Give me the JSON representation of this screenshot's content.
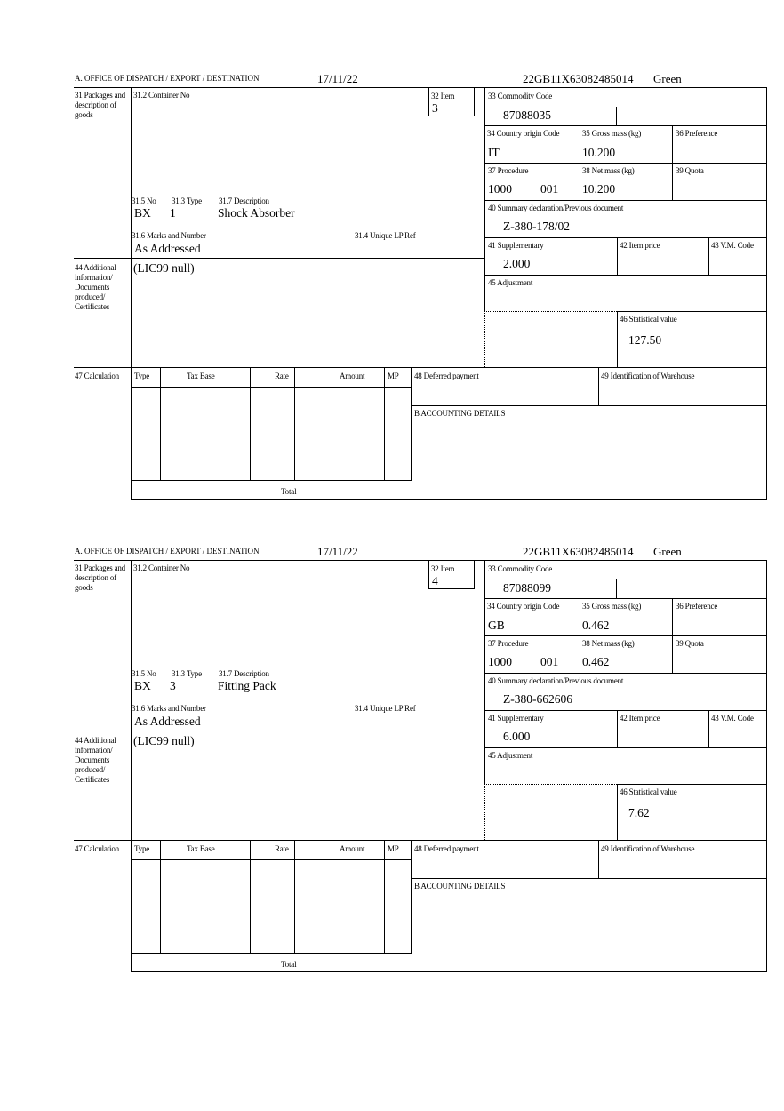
{
  "labels": {
    "office": "A.  OFFICE OF DISPATCH / EXPORT / DESTINATION",
    "box31": "31 Packages and description of goods",
    "box31_2": "31.2 Container No",
    "box32": "32 Item",
    "box33": "33 Commodity Code",
    "box34": "34 Country origin Code",
    "box35": "35 Gross mass (kg)",
    "box36": "36 Preference",
    "box37": "37 Procedure",
    "box38": "38 Net mass (kg)",
    "box39": "39 Quota",
    "box40": "40 Summary declaration/Previous document",
    "box41": "41 Supplementary",
    "box42": "42 Item price",
    "box43": "43 V.M. Code",
    "box45": "45 Adjustment",
    "box46": "46 Statistical value",
    "box31_5": "31.5 No",
    "box31_3": "31.3 Type",
    "box31_7": "31.7 Description",
    "box31_6": "31.6 Marks and Number",
    "box31_4": "31.4 Unique LP Ref",
    "box44": "44 Additional information/ Documents produced/ Certificates",
    "box47": "47 Calculation",
    "calc_type": "Type",
    "calc_tax_base": "Tax Base",
    "calc_rate": "Rate",
    "calc_amount": "Amount",
    "calc_mp": "MP",
    "calc_total": "Total",
    "box48": "48 Deferred payment",
    "box49": "49 Identification of Warehouse",
    "boxB": "B ACCOUNTING DETAILS"
  },
  "forms": [
    {
      "date": "17/11/22",
      "reference": "22GB11X63082485014",
      "route": "Green",
      "item": "3",
      "commodity_code": "87088035",
      "country_origin": "IT",
      "gross_mass": "10.200",
      "procedure": "1000",
      "procedure_additional": "001",
      "net_mass": "10.200",
      "previous_document": "Z-380-178/02",
      "package_kind": "BX",
      "package_count": "1",
      "description": "Shock Absorber",
      "marks": "As Addressed",
      "additional_info": "(LIC99 null)",
      "supplementary": "2.000",
      "statistical_value": "127.50"
    },
    {
      "date": "17/11/22",
      "reference": "22GB11X63082485014",
      "route": "Green",
      "item": "4",
      "commodity_code": "87088099",
      "country_origin": "GB",
      "gross_mass": "0.462",
      "procedure": "1000",
      "procedure_additional": "001",
      "net_mass": "0.462",
      "previous_document": "Z-380-662606",
      "package_kind": "BX",
      "package_count": "3",
      "description": "Fitting Pack",
      "marks": "As Addressed",
      "additional_info": "(LIC99 null)",
      "supplementary": "6.000",
      "statistical_value": "7.62"
    }
  ]
}
